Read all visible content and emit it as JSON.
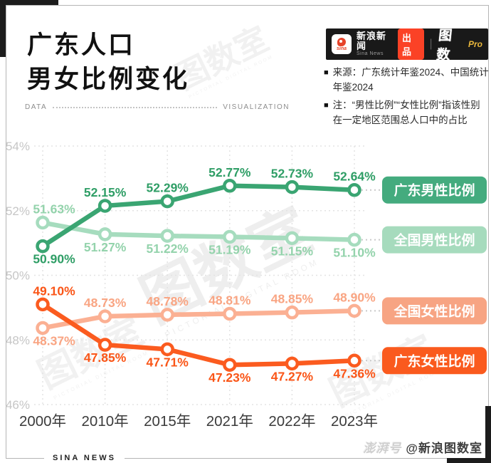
{
  "header": {
    "title_line1": "广东人口",
    "title_line2": "男女比例变化",
    "divider_left": "DATA",
    "divider_right": "VISUALIZATION",
    "bullet": "■",
    "brand": {
      "sina_word": "sina",
      "name_cn": "新浪新闻",
      "name_en": "Sina News",
      "badge": "出品",
      "separator": "|",
      "product": "图数",
      "product_suffix": "Pro"
    },
    "source_label": "来源：广东统计年鉴2024、中国统计年鉴2024",
    "note_label": "注：“男性比例”“女性比例”指该性别在一定地区范围总人口中的占比"
  },
  "watermark": {
    "text": "图数室",
    "subtext": "PICTORIAL DIGITAL ROOM"
  },
  "footer": {
    "left": "SINA NEWS",
    "right_logo": "澎湃号",
    "right_handle": "@新浪图数室"
  },
  "chart_data": {
    "type": "line",
    "x_labels": [
      "2000年",
      "2010年",
      "2015年",
      "2021年",
      "2022年",
      "2023年"
    ],
    "y_ticks": [
      54,
      52,
      50,
      48,
      46
    ],
    "y_tick_labels": [
      "54%",
      "52%",
      "50%",
      "48%",
      "46%"
    ],
    "ylim": [
      46,
      54
    ],
    "grid": true,
    "legend_position": "right",
    "series": [
      {
        "name": "全国男性比例",
        "color": "#a6dcbe",
        "label_color": "#94d3ac",
        "legend_color": "#a6dbbd",
        "values": [
          51.63,
          51.27,
          51.22,
          51.19,
          51.15,
          51.1
        ],
        "labels": [
          "51.63%",
          "51.27%",
          "51.22%",
          "51.19%",
          "51.15%",
          "51.10%"
        ],
        "label_side": [
          "above",
          "below",
          "below",
          "below",
          "below",
          "below"
        ]
      },
      {
        "name": "广东男性比例",
        "color": "#3aa572",
        "label_color": "#2f9e66",
        "legend_color": "#44ab7e",
        "values": [
          50.9,
          52.15,
          52.29,
          52.77,
          52.73,
          52.64
        ],
        "labels": [
          "50.90%",
          "52.15%",
          "52.29%",
          "52.77%",
          "52.73%",
          "52.64%"
        ],
        "label_side": [
          "below",
          "above",
          "above",
          "above",
          "above",
          "above"
        ]
      },
      {
        "name": "全国女性比例",
        "color": "#fbb093",
        "label_color": "#f9a583",
        "legend_color": "#f7a483",
        "values": [
          48.37,
          48.73,
          48.78,
          48.81,
          48.85,
          48.9
        ],
        "labels": [
          "48.37%",
          "48.73%",
          "48.78%",
          "48.81%",
          "48.85%",
          "48.90%"
        ],
        "label_side": [
          "below",
          "above",
          "above",
          "above",
          "above",
          "above"
        ]
      },
      {
        "name": "广东女性比例",
        "color": "#fb5b1f",
        "label_color": "#fa5517",
        "legend_color": "#fa5a1e",
        "values": [
          49.1,
          47.85,
          47.71,
          47.23,
          47.27,
          47.36
        ],
        "labels": [
          "49.10%",
          "47.85%",
          "47.71%",
          "47.23%",
          "47.27%",
          "47.36%"
        ],
        "label_side": [
          "above",
          "below",
          "below",
          "below",
          "below",
          "below"
        ]
      }
    ]
  }
}
